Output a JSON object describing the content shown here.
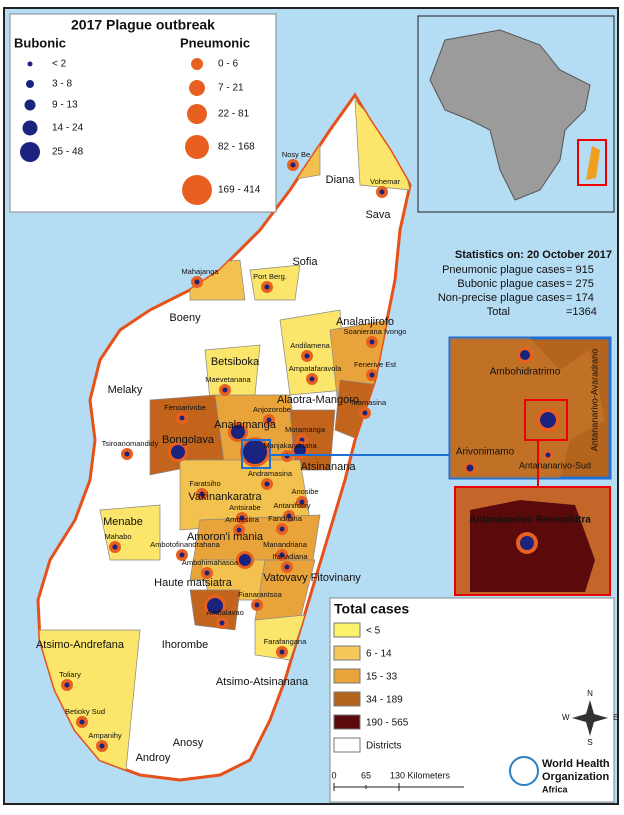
{
  "title": "2017 Plague outbreak",
  "legend_bubonic": {
    "title": "Bubonic",
    "items": [
      "< 2",
      "3 - 8",
      "9 - 13",
      "14 - 24",
      "25 - 48"
    ]
  },
  "legend_pneumonic": {
    "title": "Pneumonic",
    "items": [
      "0 - 6",
      "7 - 21",
      "22 - 81",
      "82 - 168",
      "169 - 414"
    ]
  },
  "statistics": {
    "heading": "Statistics on: 20 October 2017",
    "rows": [
      [
        "Pneumonic plague cases",
        "= 915"
      ],
      [
        "Bubonic plague cases",
        "= 275"
      ],
      [
        "Non-precise plague cases",
        "= 174"
      ],
      [
        "Total",
        "=1364"
      ]
    ]
  },
  "legend_total": {
    "title": "Total cases",
    "items": [
      "< 5",
      "6 - 14",
      "15 - 33",
      "34 - 189",
      "190 - 565",
      "Districts"
    ]
  },
  "regions": [
    "Diana",
    "Sava",
    "Sofia",
    "Boeny",
    "Analanjirofo",
    "Betsiboka",
    "Melaky",
    "Alaotra-Mangoro",
    "Analamanga",
    "Bongolava",
    "Atsinanana",
    "Vakinankaratra",
    "Menabe",
    "Amoron'i mania",
    "Haute matsiatra",
    "Vatovavy Fitovinany",
    "Atsimo-Andrefana",
    "Ihorombe",
    "Atsimo-Atsinanana",
    "Anosy",
    "Androy"
  ],
  "districts": [
    "Nosy Be",
    "Vohemar",
    "Mahajanga",
    "Port Berg.",
    "Soanierana Ivongo",
    "Andilamena",
    "Fenerive Est",
    "Ampatafaravola",
    "Maevetanana",
    "Toamasina",
    "Fenoarivobe",
    "Anjozorobe",
    "Tsiroanomandidy",
    "Manjakandriana",
    "Moramanga",
    "Andramasina",
    "Faratsiho",
    "Anosibe",
    "Antsirabe",
    "Antanifotsy",
    "Ambositra",
    "Fandriana",
    "Ambotofinandrahana",
    "Manandriana",
    "Ifanadiana",
    "Ambohimahasoa",
    "Fianarantsoa",
    "Ambalavao",
    "Mahabo",
    "Farafangana",
    "Toliary",
    "Betioky Sud",
    "Ampanihy"
  ],
  "inset": {
    "labels": [
      "Ambohidratrimo",
      "Arivonimamo",
      "Antananarivo-Avaradrano",
      "Antananarivo-Sud"
    ],
    "zoom_label": "Antananarivo Renivohitra"
  },
  "scale": [
    "0",
    "65",
    "130 Kilometers"
  ],
  "compass": [
    "N",
    "S",
    "E",
    "W"
  ],
  "logo": [
    "World Health",
    "Organization",
    "Africa"
  ]
}
